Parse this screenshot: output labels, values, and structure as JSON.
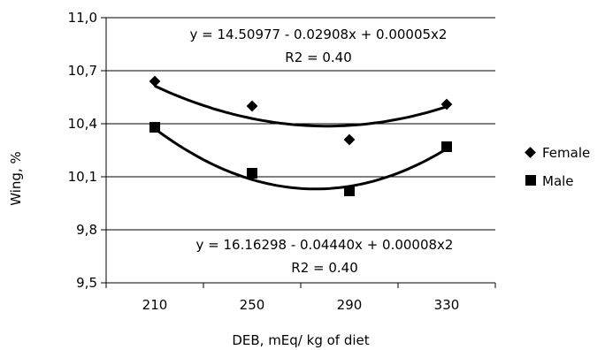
{
  "chart_data": {
    "type": "scatter",
    "title": "",
    "xlabel": "DEB, mEq/ kg of diet",
    "ylabel": "Wing, %",
    "categories": [
      "210",
      "250",
      "290",
      "330"
    ],
    "ylim": [
      9.5,
      11.0
    ],
    "yticks": [
      "9,5",
      "9,8",
      "10,1",
      "10,4",
      "10,7",
      "11,0"
    ],
    "ytick_values": [
      9.5,
      9.8,
      10.1,
      10.4,
      10.7,
      11.0
    ],
    "grid": "horizontal",
    "legend_position": "right",
    "series": [
      {
        "name": "Female",
        "marker": "diamond",
        "values": [
          10.64,
          10.5,
          10.31,
          10.51
        ],
        "trend": {
          "type": "polynomial",
          "order": 2,
          "fit": [
            10.61,
            10.44,
            10.38,
            10.5
          ]
        },
        "equation": "y = 14.50977 - 0.02908x + 0.00005x2",
        "r2": "R2 = 0.40"
      },
      {
        "name": "Male",
        "marker": "square",
        "values": [
          10.38,
          10.12,
          10.02,
          10.27
        ],
        "trend": {
          "type": "polynomial",
          "order": 2,
          "fit": [
            10.37,
            10.09,
            10.04,
            10.26
          ]
        },
        "equation": "y = 16.16298 - 0.04440x + 0.00008x2",
        "r2": "R2 = 0.40"
      }
    ],
    "colors": {
      "marker": "#000000",
      "line": "#000000",
      "grid": "#000000"
    }
  }
}
